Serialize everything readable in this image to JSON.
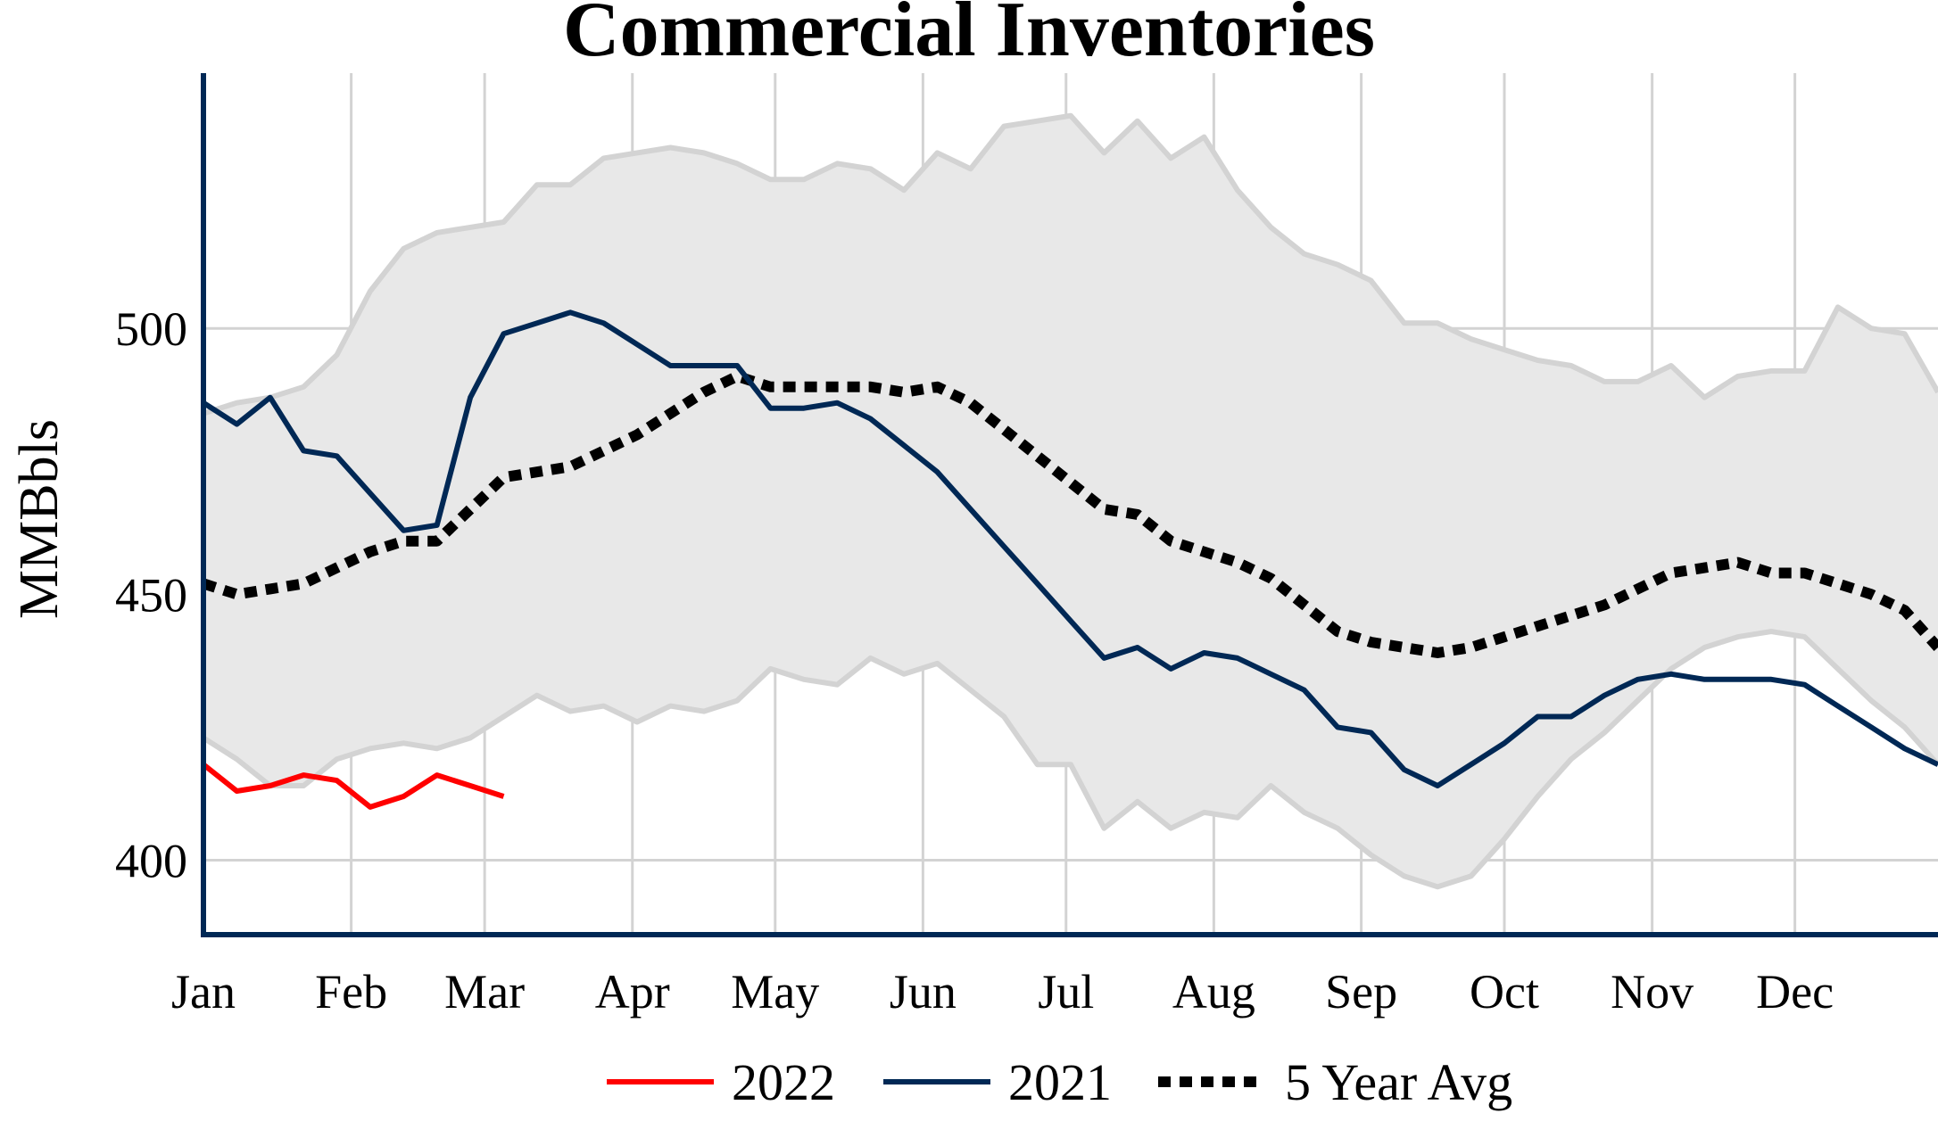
{
  "chart_data": {
    "type": "line",
    "title": "Commercial Inventories",
    "xlabel": "",
    "ylabel": "MMBbls",
    "ylim": [
      386,
      548
    ],
    "yticks": [
      400,
      450,
      500
    ],
    "x_range_weeks": [
      0,
      52
    ],
    "month_ticks": [
      {
        "label": "Jan",
        "week": 0
      },
      {
        "label": "Feb",
        "week": 4.43
      },
      {
        "label": "Mar",
        "week": 8.43
      },
      {
        "label": "Apr",
        "week": 12.86
      },
      {
        "label": "May",
        "week": 17.14
      },
      {
        "label": "Jun",
        "week": 21.57
      },
      {
        "label": "Jul",
        "week": 25.86
      },
      {
        "label": "Aug",
        "week": 30.29
      },
      {
        "label": "Sep",
        "week": 34.71
      },
      {
        "label": "Oct",
        "week": 39.0
      },
      {
        "label": "Nov",
        "week": 43.43
      },
      {
        "label": "Dec",
        "week": 47.71
      }
    ],
    "grid": true,
    "legend_position": "bottom-center",
    "range_band": {
      "name": "5 Year Range",
      "color": "#e8e8e8",
      "edge_color": "#d3d3d3",
      "upper": [
        484,
        486,
        487,
        489,
        495,
        507,
        515,
        518,
        519,
        520,
        527,
        527,
        532,
        533,
        534,
        533,
        531,
        528,
        528,
        531,
        530,
        526,
        533,
        530,
        538,
        539,
        540,
        533,
        539,
        532,
        536,
        526,
        519,
        514,
        512,
        509,
        501,
        501,
        498,
        496,
        494,
        493,
        490,
        490,
        493,
        487,
        491,
        492,
        492,
        504,
        500,
        499,
        488
      ],
      "lower": [
        423,
        419,
        414,
        414,
        419,
        421,
        422,
        421,
        423,
        427,
        431,
        428,
        429,
        426,
        429,
        428,
        430,
        436,
        434,
        433,
        438,
        435,
        437,
        432,
        427,
        418,
        418,
        406,
        411,
        406,
        409,
        408,
        414,
        409,
        406,
        401,
        397,
        395,
        397,
        404,
        412,
        419,
        424,
        430,
        436,
        440,
        442,
        443,
        442,
        436,
        430,
        425,
        418
      ]
    },
    "series": [
      {
        "name": "2022",
        "color": "#ff0000",
        "style": "solid",
        "values": [
          418,
          413,
          414,
          416,
          415,
          410,
          412,
          416,
          414,
          412
        ]
      },
      {
        "name": "2021",
        "color": "#002855",
        "style": "solid",
        "values": [
          486,
          482,
          487,
          477,
          476,
          469,
          462,
          463,
          487,
          499,
          501,
          503,
          501,
          497,
          493,
          493,
          493,
          485,
          485,
          486,
          483,
          478,
          473,
          466,
          459,
          452,
          445,
          438,
          440,
          436,
          439,
          438,
          435,
          432,
          425,
          424,
          417,
          414,
          418,
          422,
          427,
          427,
          431,
          434,
          435,
          434,
          434,
          434,
          433,
          429,
          425,
          421,
          418
        ]
      },
      {
        "name": "5 Year Avg",
        "color": "#000000",
        "style": "dotted",
        "values": [
          452,
          450,
          451,
          452,
          455,
          458,
          460,
          460,
          466,
          472,
          473,
          474,
          477,
          480,
          484,
          488,
          491,
          489,
          489,
          489,
          489,
          488,
          489,
          486,
          481,
          476,
          471,
          466,
          465,
          460,
          458,
          456,
          453,
          448,
          443,
          441,
          440,
          439,
          440,
          442,
          444,
          446,
          448,
          451,
          454,
          455,
          456,
          454,
          454,
          452,
          450,
          447,
          440
        ]
      }
    ],
    "legend": [
      "2022",
      "2021",
      "5 Year Avg"
    ]
  },
  "colors": {
    "axis": "#002855",
    "grid": "#d3d3d3",
    "band_fill": "#e8e8e8"
  }
}
